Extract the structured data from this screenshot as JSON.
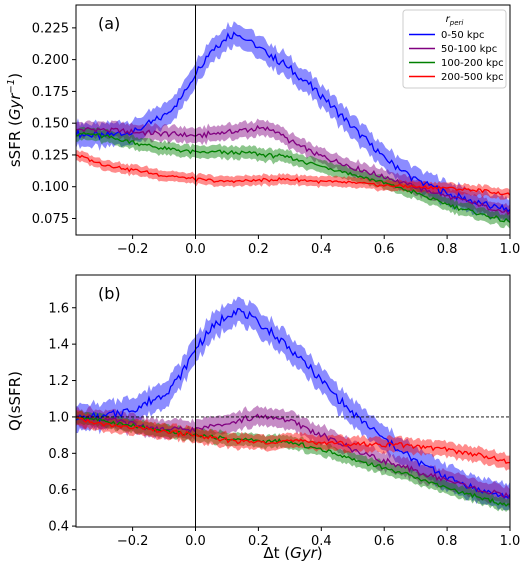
{
  "chart_data": [
    {
      "type": "line",
      "panel_label": "(a)",
      "xlabel": "",
      "ylabel": "sSFR (Gyr⁻¹)",
      "ylabel_main": "sSFR (",
      "ylabel_unit": "Gyr",
      "ylabel_exp": "−1",
      "ylabel_close": ")",
      "xlim": [
        -0.38,
        1.0
      ],
      "ylim": [
        0.062,
        0.243
      ],
      "xticks": [
        -0.2,
        0.0,
        0.2,
        0.4,
        0.6,
        0.8,
        1.0
      ],
      "xtick_labels": [
        "−0.2",
        "0.0",
        "0.2",
        "0.4",
        "0.6",
        "0.8",
        "1.0"
      ],
      "yticks": [
        0.075,
        0.1,
        0.125,
        0.15,
        0.175,
        0.2,
        0.225
      ],
      "ytick_labels": [
        "0.075",
        "0.100",
        "0.125",
        "0.150",
        "0.175",
        "0.200",
        "0.225"
      ],
      "vline_x": 0.0,
      "hline_y": null,
      "legend": {
        "title": "r",
        "title_sub": "peri",
        "position": "top-right",
        "entries": [
          "0-50 kpc",
          "50-100 kpc",
          "100-200 kpc",
          "200-500 kpc"
        ]
      },
      "series": [
        {
          "name": "0-50 kpc",
          "color": "#0000ff",
          "x": [
            -0.38,
            -0.3,
            -0.2,
            -0.1,
            -0.05,
            0.0,
            0.05,
            0.1,
            0.13,
            0.2,
            0.3,
            0.4,
            0.5,
            0.6,
            0.7,
            0.8,
            0.9,
            1.0
          ],
          "y": [
            0.142,
            0.14,
            0.143,
            0.155,
            0.168,
            0.19,
            0.207,
            0.218,
            0.221,
            0.21,
            0.193,
            0.172,
            0.147,
            0.123,
            0.106,
            0.095,
            0.087,
            0.082
          ],
          "band": 0.009
        },
        {
          "name": "50-100 kpc",
          "color": "#800080",
          "x": [
            -0.38,
            -0.3,
            -0.2,
            -0.1,
            0.0,
            0.1,
            0.2,
            0.25,
            0.3,
            0.4,
            0.5,
            0.6,
            0.7,
            0.8,
            0.9,
            1.0
          ],
          "y": [
            0.145,
            0.145,
            0.143,
            0.142,
            0.14,
            0.143,
            0.146,
            0.145,
            0.136,
            0.124,
            0.115,
            0.108,
            0.1,
            0.092,
            0.086,
            0.079
          ],
          "band": 0.006
        },
        {
          "name": "100-200 kpc",
          "color": "#008000",
          "x": [
            -0.38,
            -0.3,
            -0.2,
            -0.1,
            0.0,
            0.1,
            0.2,
            0.3,
            0.4,
            0.5,
            0.6,
            0.7,
            0.8,
            0.9,
            1.0
          ],
          "y": [
            0.142,
            0.14,
            0.135,
            0.13,
            0.127,
            0.127,
            0.126,
            0.123,
            0.116,
            0.11,
            0.103,
            0.095,
            0.086,
            0.079,
            0.072
          ],
          "band": 0.005
        },
        {
          "name": "200-500 kpc",
          "color": "#ff0000",
          "x": [
            -0.38,
            -0.3,
            -0.2,
            -0.1,
            0.0,
            0.1,
            0.2,
            0.3,
            0.4,
            0.5,
            0.6,
            0.7,
            0.8,
            0.9,
            1.0
          ],
          "y": [
            0.125,
            0.118,
            0.113,
            0.109,
            0.106,
            0.104,
            0.105,
            0.106,
            0.104,
            0.103,
            0.101,
            0.1,
            0.099,
            0.097,
            0.094
          ],
          "band": 0.004
        }
      ]
    },
    {
      "type": "line",
      "panel_label": "(b)",
      "xlabel": "Δt (Gyr)",
      "xlabel_main": "Δt (",
      "xlabel_unit": "Gyr",
      "xlabel_close": ")",
      "ylabel": "Q(sSFR)",
      "xlim": [
        -0.38,
        1.0
      ],
      "ylim": [
        0.395,
        1.78
      ],
      "xticks": [
        -0.2,
        0.0,
        0.2,
        0.4,
        0.6,
        0.8,
        1.0
      ],
      "xtick_labels": [
        "−0.2",
        "0.0",
        "0.2",
        "0.4",
        "0.6",
        "0.8",
        "1.0"
      ],
      "yticks": [
        0.4,
        0.6,
        0.8,
        1.0,
        1.2,
        1.4,
        1.6
      ],
      "ytick_labels": [
        "0.4",
        "0.6",
        "0.8",
        "1.0",
        "1.2",
        "1.4",
        "1.6"
      ],
      "vline_x": 0.0,
      "hline_y": 1.0,
      "series": [
        {
          "name": "0-50 kpc",
          "color": "#0000ff",
          "x": [
            -0.38,
            -0.3,
            -0.2,
            -0.1,
            -0.05,
            0.0,
            0.05,
            0.1,
            0.13,
            0.2,
            0.3,
            0.4,
            0.5,
            0.6,
            0.7,
            0.8,
            0.9,
            1.0
          ],
          "y": [
            1.0,
            1.0,
            1.04,
            1.12,
            1.22,
            1.38,
            1.48,
            1.56,
            1.59,
            1.52,
            1.38,
            1.2,
            1.02,
            0.88,
            0.76,
            0.67,
            0.6,
            0.56
          ],
          "band": 0.07
        },
        {
          "name": "50-100 kpc",
          "color": "#800080",
          "x": [
            -0.38,
            -0.3,
            -0.2,
            -0.1,
            0.0,
            0.1,
            0.2,
            0.25,
            0.3,
            0.4,
            0.5,
            0.6,
            0.7,
            0.8,
            0.9,
            1.0
          ],
          "y": [
            1.0,
            0.99,
            0.96,
            0.93,
            0.93,
            0.97,
            1.0,
            1.0,
            0.98,
            0.9,
            0.82,
            0.76,
            0.7,
            0.65,
            0.6,
            0.56
          ],
          "band": 0.05
        },
        {
          "name": "100-200 kpc",
          "color": "#008000",
          "x": [
            -0.38,
            -0.3,
            -0.2,
            -0.1,
            0.0,
            0.1,
            0.2,
            0.3,
            0.4,
            0.5,
            0.6,
            0.7,
            0.8,
            0.9,
            1.0
          ],
          "y": [
            1.0,
            0.98,
            0.95,
            0.92,
            0.9,
            0.88,
            0.87,
            0.86,
            0.82,
            0.77,
            0.72,
            0.67,
            0.61,
            0.56,
            0.51
          ],
          "band": 0.035
        },
        {
          "name": "200-500 kpc",
          "color": "#ff0000",
          "x": [
            -0.38,
            -0.3,
            -0.2,
            -0.1,
            0.0,
            0.1,
            0.2,
            0.3,
            0.4,
            0.5,
            0.6,
            0.7,
            0.8,
            0.9,
            1.0
          ],
          "y": [
            0.99,
            0.96,
            0.94,
            0.92,
            0.9,
            0.87,
            0.86,
            0.87,
            0.86,
            0.85,
            0.85,
            0.84,
            0.82,
            0.79,
            0.75
          ],
          "band": 0.04
        }
      ]
    }
  ]
}
